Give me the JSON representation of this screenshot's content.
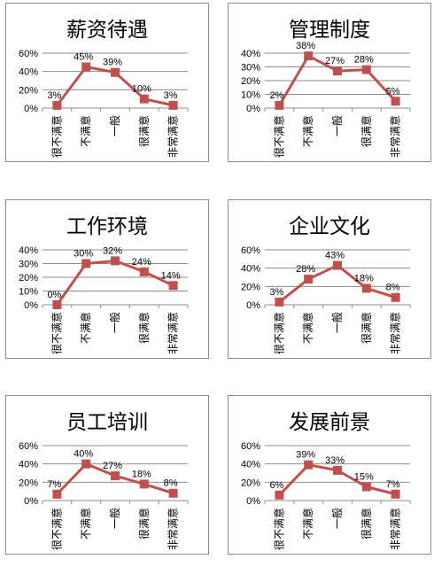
{
  "chart_data": [
    {
      "type": "line",
      "title": "薪资待遇",
      "categories": [
        "很不满意",
        "不满意",
        "一般",
        "很满意",
        "非常满意"
      ],
      "values": [
        3,
        45,
        39,
        10,
        3
      ],
      "value_labels": [
        "3%",
        "45%",
        "39%",
        "10%",
        "3%"
      ],
      "y_ticks": [
        "0%",
        "20%",
        "40%",
        "60%"
      ],
      "ylim": [
        0,
        60
      ],
      "grid": true,
      "series_color": "#c0504d"
    },
    {
      "type": "line",
      "title": "管理制度",
      "categories": [
        "很不满意",
        "不满意",
        "一般",
        "很满意",
        "非常满意"
      ],
      "values": [
        2,
        38,
        27,
        28,
        5
      ],
      "value_labels": [
        "2%",
        "38%",
        "27%",
        "28%",
        "5%"
      ],
      "y_ticks": [
        "0%",
        "10%",
        "20%",
        "30%",
        "40%"
      ],
      "ylim": [
        0,
        40
      ],
      "grid": true,
      "series_color": "#c0504d"
    },
    {
      "type": "line",
      "title": "工作环境",
      "categories": [
        "很不满意",
        "不满意",
        "一般",
        "很满意",
        "非常满意"
      ],
      "values": [
        0,
        30,
        32,
        24,
        14
      ],
      "value_labels": [
        "0%",
        "30%",
        "32%",
        "24%",
        "14%"
      ],
      "y_ticks": [
        "0%",
        "10%",
        "20%",
        "30%",
        "40%"
      ],
      "ylim": [
        0,
        40
      ],
      "grid": true,
      "series_color": "#c0504d"
    },
    {
      "type": "line",
      "title": "企业文化",
      "categories": [
        "很不满意",
        "不满意",
        "一般",
        "很满意",
        "非常满意"
      ],
      "values": [
        3,
        28,
        43,
        18,
        8
      ],
      "value_labels": [
        "3%",
        "28%",
        "43%",
        "18%",
        "8%"
      ],
      "y_ticks": [
        "0%",
        "20%",
        "40%",
        "60%"
      ],
      "ylim": [
        0,
        60
      ],
      "grid": true,
      "series_color": "#c0504d"
    },
    {
      "type": "line",
      "title": "员工培训",
      "categories": [
        "很不满意",
        "不满意",
        "一般",
        "很满意",
        "非常满意"
      ],
      "values": [
        7,
        40,
        27,
        18,
        8
      ],
      "value_labels": [
        "7%",
        "40%",
        "27%",
        "18%",
        "8%"
      ],
      "y_ticks": [
        "0%",
        "20%",
        "40%",
        "60%"
      ],
      "ylim": [
        0,
        60
      ],
      "grid": true,
      "series_color": "#c0504d"
    },
    {
      "type": "line",
      "title": "发展前景",
      "categories": [
        "很不满意",
        "不满意",
        "一般",
        "很满意",
        "非常满意"
      ],
      "values": [
        6,
        39,
        33,
        15,
        7
      ],
      "value_labels": [
        "6%",
        "39%",
        "33%",
        "15%",
        "7%"
      ],
      "y_ticks": [
        "0%",
        "20%",
        "40%",
        "60%"
      ],
      "ylim": [
        0,
        60
      ],
      "grid": true,
      "series_color": "#c0504d"
    }
  ]
}
